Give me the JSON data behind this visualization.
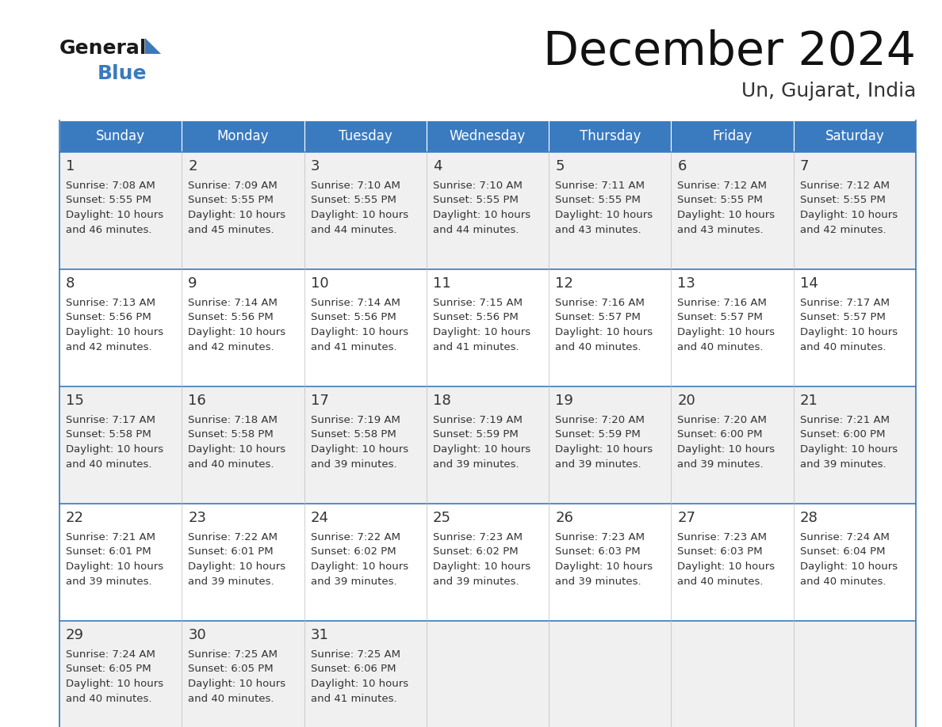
{
  "title": "December 2024",
  "subtitle": "Un, Gujarat, India",
  "header_bg": "#3a7abf",
  "header_text_color": "#ffffff",
  "days_of_week": [
    "Sunday",
    "Monday",
    "Tuesday",
    "Wednesday",
    "Thursday",
    "Friday",
    "Saturday"
  ],
  "row_bg_odd": "#f0f0f0",
  "row_bg_even": "#ffffff",
  "cell_border_color": "#3a7abf",
  "day_num_color": "#333333",
  "info_text_color": "#333333",
  "logo_general_color": "#1a1a1a",
  "logo_blue_color": "#3a7abf",
  "logo_triangle_color": "#3a7abf",
  "calendar_data": [
    [
      {
        "day": 1,
        "sunrise": "7:08 AM",
        "sunset": "5:55 PM",
        "daylight_line1": "Daylight: 10 hours",
        "daylight_line2": "and 46 minutes."
      },
      {
        "day": 2,
        "sunrise": "7:09 AM",
        "sunset": "5:55 PM",
        "daylight_line1": "Daylight: 10 hours",
        "daylight_line2": "and 45 minutes."
      },
      {
        "day": 3,
        "sunrise": "7:10 AM",
        "sunset": "5:55 PM",
        "daylight_line1": "Daylight: 10 hours",
        "daylight_line2": "and 44 minutes."
      },
      {
        "day": 4,
        "sunrise": "7:10 AM",
        "sunset": "5:55 PM",
        "daylight_line1": "Daylight: 10 hours",
        "daylight_line2": "and 44 minutes."
      },
      {
        "day": 5,
        "sunrise": "7:11 AM",
        "sunset": "5:55 PM",
        "daylight_line1": "Daylight: 10 hours",
        "daylight_line2": "and 43 minutes."
      },
      {
        "day": 6,
        "sunrise": "7:12 AM",
        "sunset": "5:55 PM",
        "daylight_line1": "Daylight: 10 hours",
        "daylight_line2": "and 43 minutes."
      },
      {
        "day": 7,
        "sunrise": "7:12 AM",
        "sunset": "5:55 PM",
        "daylight_line1": "Daylight: 10 hours",
        "daylight_line2": "and 42 minutes."
      }
    ],
    [
      {
        "day": 8,
        "sunrise": "7:13 AM",
        "sunset": "5:56 PM",
        "daylight_line1": "Daylight: 10 hours",
        "daylight_line2": "and 42 minutes."
      },
      {
        "day": 9,
        "sunrise": "7:14 AM",
        "sunset": "5:56 PM",
        "daylight_line1": "Daylight: 10 hours",
        "daylight_line2": "and 42 minutes."
      },
      {
        "day": 10,
        "sunrise": "7:14 AM",
        "sunset": "5:56 PM",
        "daylight_line1": "Daylight: 10 hours",
        "daylight_line2": "and 41 minutes."
      },
      {
        "day": 11,
        "sunrise": "7:15 AM",
        "sunset": "5:56 PM",
        "daylight_line1": "Daylight: 10 hours",
        "daylight_line2": "and 41 minutes."
      },
      {
        "day": 12,
        "sunrise": "7:16 AM",
        "sunset": "5:57 PM",
        "daylight_line1": "Daylight: 10 hours",
        "daylight_line2": "and 40 minutes."
      },
      {
        "day": 13,
        "sunrise": "7:16 AM",
        "sunset": "5:57 PM",
        "daylight_line1": "Daylight: 10 hours",
        "daylight_line2": "and 40 minutes."
      },
      {
        "day": 14,
        "sunrise": "7:17 AM",
        "sunset": "5:57 PM",
        "daylight_line1": "Daylight: 10 hours",
        "daylight_line2": "and 40 minutes."
      }
    ],
    [
      {
        "day": 15,
        "sunrise": "7:17 AM",
        "sunset": "5:58 PM",
        "daylight_line1": "Daylight: 10 hours",
        "daylight_line2": "and 40 minutes."
      },
      {
        "day": 16,
        "sunrise": "7:18 AM",
        "sunset": "5:58 PM",
        "daylight_line1": "Daylight: 10 hours",
        "daylight_line2": "and 40 minutes."
      },
      {
        "day": 17,
        "sunrise": "7:19 AM",
        "sunset": "5:58 PM",
        "daylight_line1": "Daylight: 10 hours",
        "daylight_line2": "and 39 minutes."
      },
      {
        "day": 18,
        "sunrise": "7:19 AM",
        "sunset": "5:59 PM",
        "daylight_line1": "Daylight: 10 hours",
        "daylight_line2": "and 39 minutes."
      },
      {
        "day": 19,
        "sunrise": "7:20 AM",
        "sunset": "5:59 PM",
        "daylight_line1": "Daylight: 10 hours",
        "daylight_line2": "and 39 minutes."
      },
      {
        "day": 20,
        "sunrise": "7:20 AM",
        "sunset": "6:00 PM",
        "daylight_line1": "Daylight: 10 hours",
        "daylight_line2": "and 39 minutes."
      },
      {
        "day": 21,
        "sunrise": "7:21 AM",
        "sunset": "6:00 PM",
        "daylight_line1": "Daylight: 10 hours",
        "daylight_line2": "and 39 minutes."
      }
    ],
    [
      {
        "day": 22,
        "sunrise": "7:21 AM",
        "sunset": "6:01 PM",
        "daylight_line1": "Daylight: 10 hours",
        "daylight_line2": "and 39 minutes."
      },
      {
        "day": 23,
        "sunrise": "7:22 AM",
        "sunset": "6:01 PM",
        "daylight_line1": "Daylight: 10 hours",
        "daylight_line2": "and 39 minutes."
      },
      {
        "day": 24,
        "sunrise": "7:22 AM",
        "sunset": "6:02 PM",
        "daylight_line1": "Daylight: 10 hours",
        "daylight_line2": "and 39 minutes."
      },
      {
        "day": 25,
        "sunrise": "7:23 AM",
        "sunset": "6:02 PM",
        "daylight_line1": "Daylight: 10 hours",
        "daylight_line2": "and 39 minutes."
      },
      {
        "day": 26,
        "sunrise": "7:23 AM",
        "sunset": "6:03 PM",
        "daylight_line1": "Daylight: 10 hours",
        "daylight_line2": "and 39 minutes."
      },
      {
        "day": 27,
        "sunrise": "7:23 AM",
        "sunset": "6:03 PM",
        "daylight_line1": "Daylight: 10 hours",
        "daylight_line2": "and 40 minutes."
      },
      {
        "day": 28,
        "sunrise": "7:24 AM",
        "sunset": "6:04 PM",
        "daylight_line1": "Daylight: 10 hours",
        "daylight_line2": "and 40 minutes."
      }
    ],
    [
      {
        "day": 29,
        "sunrise": "7:24 AM",
        "sunset": "6:05 PM",
        "daylight_line1": "Daylight: 10 hours",
        "daylight_line2": "and 40 minutes."
      },
      {
        "day": 30,
        "sunrise": "7:25 AM",
        "sunset": "6:05 PM",
        "daylight_line1": "Daylight: 10 hours",
        "daylight_line2": "and 40 minutes."
      },
      {
        "day": 31,
        "sunrise": "7:25 AM",
        "sunset": "6:06 PM",
        "daylight_line1": "Daylight: 10 hours",
        "daylight_line2": "and 41 minutes."
      },
      null,
      null,
      null,
      null
    ]
  ]
}
